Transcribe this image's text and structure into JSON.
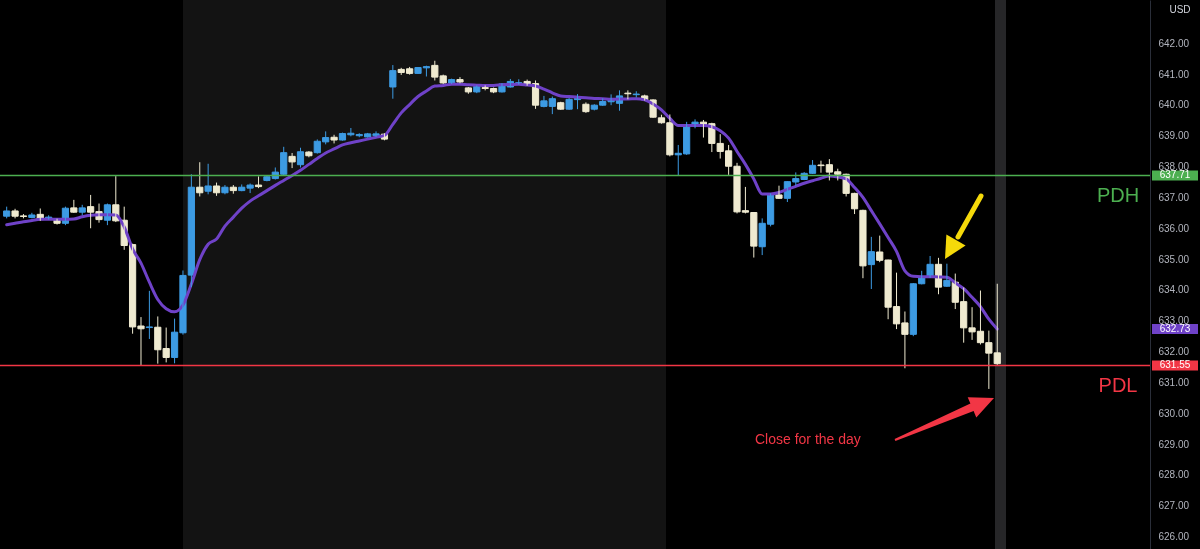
{
  "chart_data": {
    "type": "candlestick",
    "categories": [
      null,
      null,
      null,
      null,
      null,
      null,
      null,
      null,
      null,
      null,
      null,
      null,
      null,
      null,
      null,
      null,
      null,
      null,
      null,
      null,
      null,
      null,
      null,
      null,
      null,
      null,
      null,
      null,
      null,
      null,
      null,
      null,
      null,
      null,
      null,
      null,
      null,
      null,
      null,
      null,
      null,
      null,
      null,
      null,
      null,
      null,
      null,
      null,
      null,
      null,
      null,
      null,
      null,
      null,
      null,
      null,
      null,
      null,
      null,
      null,
      null,
      null,
      null,
      null,
      null,
      null,
      null,
      null,
      null,
      null,
      null,
      null,
      null,
      null,
      null,
      null,
      null,
      null,
      null,
      null,
      null,
      null,
      null,
      null,
      null,
      null,
      null,
      null,
      null,
      null,
      null,
      null,
      null,
      null,
      null,
      null,
      null,
      null,
      null,
      null,
      null,
      null,
      null,
      null,
      null,
      null,
      null,
      null,
      null,
      null,
      null,
      null,
      null,
      null,
      null,
      null,
      null,
      null,
      null
    ],
    "ohlc": [
      [
        636.39,
        636.7,
        636.32,
        636.56
      ],
      [
        636.56,
        636.63,
        636.32,
        636.39
      ],
      [
        636.4,
        636.46,
        636.32,
        636.38
      ],
      [
        636.35,
        636.5,
        636.32,
        636.43
      ],
      [
        636.45,
        636.64,
        636.24,
        636.28
      ],
      [
        636.33,
        636.42,
        636.28,
        636.36
      ],
      [
        636.28,
        636.31,
        636.12,
        636.16
      ],
      [
        636.16,
        636.7,
        636.1,
        636.65
      ],
      [
        636.66,
        636.92,
        636.5,
        636.52
      ],
      [
        636.52,
        636.76,
        636.42,
        636.66
      ],
      [
        636.7,
        637.08,
        636.0,
        636.52
      ],
      [
        636.54,
        636.8,
        636.18,
        636.28
      ],
      [
        636.26,
        636.8,
        636.1,
        636.76
      ],
      [
        636.76,
        637.69,
        636.2,
        636.24
      ],
      [
        636.26,
        636.7,
        635.3,
        635.44
      ],
      [
        635.47,
        635.5,
        632.58,
        632.8
      ],
      [
        632.83,
        633.12,
        631.55,
        632.74
      ],
      [
        632.78,
        633.97,
        632.41,
        632.8
      ],
      [
        632.79,
        633.14,
        631.61,
        632.06
      ],
      [
        632.1,
        632.78,
        631.65,
        631.81
      ],
      [
        631.81,
        633.07,
        631.62,
        632.63
      ],
      [
        632.61,
        634.63,
        632.55,
        634.47
      ],
      [
        634.48,
        637.75,
        634.09,
        637.33
      ],
      [
        637.33,
        638.14,
        637.03,
        637.15
      ],
      [
        637.2,
        638.09,
        637.1,
        637.37
      ],
      [
        637.37,
        637.48,
        637.05,
        637.15
      ],
      [
        637.15,
        637.4,
        637.1,
        637.33
      ],
      [
        637.33,
        637.4,
        637.12,
        637.22
      ],
      [
        637.22,
        637.42,
        637.2,
        637.33
      ],
      [
        637.3,
        637.45,
        637.14,
        637.4
      ],
      [
        637.4,
        637.68,
        637.3,
        637.35
      ],
      [
        637.55,
        637.72,
        637.52,
        637.67
      ],
      [
        637.61,
        637.97,
        637.58,
        637.82
      ],
      [
        637.75,
        638.64,
        637.72,
        638.45
      ],
      [
        638.33,
        638.44,
        637.95,
        638.15
      ],
      [
        638.06,
        638.61,
        637.97,
        638.48
      ],
      [
        638.47,
        638.5,
        638.3,
        638.35
      ],
      [
        638.45,
        638.88,
        638.42,
        638.82
      ],
      [
        638.8,
        639.14,
        638.72,
        638.94
      ],
      [
        638.95,
        639.03,
        638.75,
        638.86
      ],
      [
        638.86,
        639.1,
        638.84,
        639.07
      ],
      [
        639.03,
        639.25,
        638.98,
        639.08
      ],
      [
        639.0,
        639.08,
        638.95,
        639.04
      ],
      [
        638.96,
        639.09,
        638.94,
        639.06
      ],
      [
        639.0,
        639.14,
        638.96,
        639.06
      ],
      [
        639.05,
        639.08,
        638.85,
        638.89
      ],
      [
        640.58,
        641.29,
        640.2,
        641.11
      ],
      [
        641.15,
        641.2,
        640.97,
        641.05
      ],
      [
        641.17,
        641.23,
        640.98,
        641.02
      ],
      [
        641.02,
        641.22,
        641.0,
        641.21
      ],
      [
        641.2,
        641.27,
        640.92,
        641.24
      ],
      [
        641.28,
        641.43,
        640.79,
        640.9
      ],
      [
        640.94,
        640.98,
        640.68,
        640.71
      ],
      [
        640.71,
        640.85,
        640.68,
        640.82
      ],
      [
        640.82,
        640.9,
        640.7,
        640.74
      ],
      [
        640.55,
        640.58,
        640.36,
        640.42
      ],
      [
        640.42,
        640.63,
        640.38,
        640.6
      ],
      [
        640.56,
        640.63,
        640.47,
        640.53
      ],
      [
        640.53,
        640.56,
        640.38,
        640.42
      ],
      [
        640.42,
        640.7,
        640.4,
        640.68
      ],
      [
        640.58,
        640.84,
        640.56,
        640.76
      ],
      [
        640.69,
        640.83,
        640.66,
        640.72
      ],
      [
        640.76,
        640.82,
        640.62,
        640.66
      ],
      [
        640.69,
        640.79,
        639.87,
        639.99
      ],
      [
        639.95,
        640.29,
        639.92,
        640.13
      ],
      [
        639.95,
        640.27,
        639.7,
        640.2
      ],
      [
        640.07,
        640.1,
        639.84,
        639.86
      ],
      [
        639.86,
        640.22,
        639.84,
        640.18
      ],
      [
        640.17,
        640.35,
        639.86,
        640.21
      ],
      [
        640.02,
        640.08,
        639.74,
        639.78
      ],
      [
        639.86,
        640.02,
        639.82,
        639.99
      ],
      [
        639.99,
        640.21,
        639.97,
        640.11
      ],
      [
        640.1,
        640.34,
        639.99,
        640.16
      ],
      [
        640.05,
        640.47,
        639.81,
        640.29
      ],
      [
        640.38,
        640.47,
        640.18,
        640.36
      ],
      [
        640.33,
        640.44,
        640.24,
        640.35
      ],
      [
        640.29,
        640.33,
        640.14,
        640.16
      ],
      [
        640.16,
        640.18,
        639.58,
        639.6
      ],
      [
        639.58,
        639.68,
        639.39,
        639.42
      ],
      [
        639.42,
        639.69,
        638.33,
        638.38
      ],
      [
        638.38,
        638.7,
        637.7,
        638.43
      ],
      [
        638.41,
        639.45,
        638.38,
        639.3
      ],
      [
        639.3,
        639.53,
        639.24,
        639.44
      ],
      [
        639.44,
        639.51,
        638.94,
        639.34
      ],
      [
        639.39,
        639.42,
        638.47,
        638.75
      ],
      [
        638.75,
        639.05,
        638.26,
        638.49
      ],
      [
        638.51,
        638.7,
        637.73,
        638.01
      ],
      [
        638.01,
        638.12,
        636.48,
        636.53
      ],
      [
        636.57,
        637.34,
        636.48,
        636.52
      ],
      [
        636.51,
        636.52,
        635.05,
        635.42
      ],
      [
        635.4,
        636.32,
        635.13,
        636.16
      ],
      [
        636.13,
        637.13,
        636.06,
        637.11
      ],
      [
        637.08,
        637.38,
        636.95,
        636.97
      ],
      [
        636.97,
        637.52,
        636.85,
        637.51
      ],
      [
        637.5,
        637.81,
        637.38,
        637.61
      ],
      [
        637.58,
        637.82,
        637.56,
        637.78
      ],
      [
        637.78,
        638.21,
        637.76,
        638.04
      ],
      [
        638.05,
        638.19,
        637.8,
        638.03
      ],
      [
        638.06,
        638.24,
        637.55,
        637.82
      ],
      [
        637.83,
        637.93,
        637.55,
        637.75
      ],
      [
        637.75,
        637.77,
        637.03,
        637.13
      ],
      [
        637.13,
        637.15,
        636.46,
        636.63
      ],
      [
        636.58,
        636.6,
        634.38,
        634.78
      ],
      [
        634.82,
        635.72,
        634.03,
        635.24
      ],
      [
        635.23,
        635.76,
        634.9,
        634.96
      ],
      [
        634.97,
        634.98,
        633.05,
        633.44
      ],
      [
        633.46,
        634.56,
        632.73,
        632.9
      ],
      [
        632.93,
        633.3,
        631.46,
        632.56
      ],
      [
        632.56,
        634.22,
        632.5,
        634.2
      ],
      [
        634.2,
        634.62,
        634.18,
        634.41
      ],
      [
        634.41,
        635.1,
        634.39,
        634.83
      ],
      [
        634.83,
        635.04,
        633.86,
        634.09
      ],
      [
        634.12,
        634.85,
        634.1,
        634.31
      ],
      [
        634.25,
        634.53,
        633.38,
        633.6
      ],
      [
        633.62,
        634.08,
        632.29,
        632.77
      ],
      [
        632.77,
        633.44,
        632.38,
        632.64
      ],
      [
        632.66,
        633.98,
        632.23,
        632.29
      ],
      [
        632.29,
        632.68,
        630.79,
        631.95
      ],
      [
        631.96,
        634.2,
        631.56,
        631.61
      ]
    ],
    "series": [
      {
        "type": "line",
        "color": "#6f42c8",
        "values": [
          636.11,
          636.16,
          636.21,
          636.25,
          636.29,
          636.29,
          636.29,
          636.29,
          636.3,
          636.37,
          636.42,
          636.44,
          636.44,
          636.43,
          636.04,
          635.33,
          634.87,
          634.25,
          633.69,
          633.39,
          633.29,
          633.51,
          634.19,
          634.98,
          635.48,
          635.65,
          636.07,
          636.36,
          636.65,
          636.88,
          637.05,
          637.22,
          637.39,
          637.55,
          637.71,
          637.88,
          638.07,
          638.26,
          638.44,
          638.57,
          638.7,
          638.77,
          638.83,
          638.89,
          638.95,
          639.01,
          639.37,
          639.74,
          640.01,
          640.27,
          640.45,
          640.61,
          640.63,
          640.67,
          640.67,
          640.65,
          640.64,
          640.63,
          640.63,
          640.65,
          640.66,
          640.67,
          640.64,
          640.61,
          640.51,
          640.39,
          640.29,
          640.27,
          640.25,
          640.23,
          640.21,
          640.2,
          640.18,
          640.19,
          640.19,
          640.2,
          640.16,
          640.03,
          639.84,
          639.56,
          639.33,
          639.33,
          639.33,
          639.33,
          639.29,
          639.16,
          638.92,
          638.49,
          638.07,
          637.6,
          637.11,
          637.11,
          637.16,
          637.26,
          637.36,
          637.46,
          637.54,
          637.62,
          637.69,
          637.66,
          637.6,
          637.32,
          637.0,
          636.57,
          636.14,
          635.7,
          635.25,
          634.62,
          634.44,
          634.43,
          634.43,
          634.42,
          634.41,
          634.23,
          634.04,
          633.76,
          633.46,
          633.05,
          632.73
        ]
      }
    ],
    "ylim": [
      625.6,
      643.4
    ],
    "yticks": [
      {
        "value": 626,
        "label": "626.00"
      },
      {
        "value": 627,
        "label": "627.00"
      },
      {
        "value": 628,
        "label": "628.00"
      },
      {
        "value": 629,
        "label": "629.00"
      },
      {
        "value": 630,
        "label": "630.00"
      },
      {
        "value": 631,
        "label": "631.00"
      },
      {
        "value": 632,
        "label": "632.00"
      },
      {
        "value": 633,
        "label": "633.00"
      },
      {
        "value": 634,
        "label": "634.00"
      },
      {
        "value": 635,
        "label": "635.00"
      },
      {
        "value": 636,
        "label": "636.00"
      },
      {
        "value": 637,
        "label": "637.00"
      },
      {
        "value": 638,
        "label": "638.00"
      },
      {
        "value": 639,
        "label": "639.00"
      },
      {
        "value": 640,
        "label": "640.00"
      },
      {
        "value": 641,
        "label": "641.00"
      },
      {
        "value": 642,
        "label": "642.00"
      }
    ],
    "ref_lines": [
      {
        "axis": "y",
        "value": 637.71,
        "label": "PDH",
        "color": "#4caf50"
      },
      {
        "axis": "y",
        "value": 631.55,
        "label": "PDL",
        "color": "#f23645"
      }
    ],
    "annotations": [
      "USD",
      "637.71",
      "632.73",
      "631.55",
      "Close for the day"
    ]
  }
}
